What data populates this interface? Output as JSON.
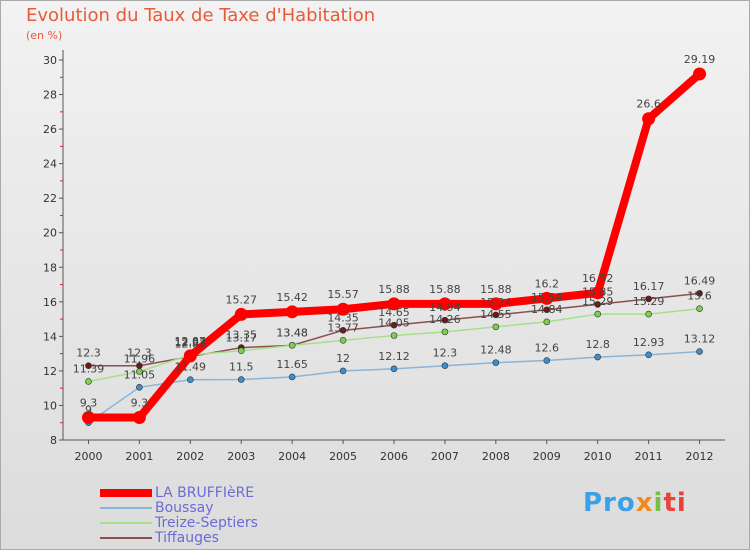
{
  "title": "Evolution du Taux de Taxe d'Habitation",
  "subtitle": "(en %)",
  "logo": {
    "p1": "Pro",
    "p2": "x",
    "p3": "i",
    "p4": "ti"
  },
  "chart_data": {
    "type": "line",
    "title": "Evolution du Taux de Taxe d'Habitation",
    "ylabel": "(en %)",
    "xlabel": "",
    "x": [
      "2000",
      "2001",
      "2002",
      "2003",
      "2004",
      "2005",
      "2006",
      "2007",
      "2008",
      "2009",
      "2010",
      "2011",
      "2012"
    ],
    "ylim": [
      8,
      30
    ],
    "yticks": [
      "8",
      "10",
      "12",
      "14",
      "16",
      "18",
      "20",
      "22",
      "24",
      "26",
      "28",
      "30"
    ],
    "grid": false,
    "legend_position": "bottom-left",
    "series": [
      {
        "name": "LA BRUFFIèRE",
        "color": "#ff0000",
        "marker": "#ff0000",
        "values": [
          9.3,
          9.3,
          12.87,
          15.27,
          15.42,
          15.57,
          15.88,
          15.88,
          15.88,
          16.2,
          16.52,
          26.6,
          29.19
        ],
        "labels": [
          "9.3",
          "9.3",
          "12.87",
          "15.27",
          "15.42",
          "15.57",
          "15.88",
          "15.88",
          "15.88",
          "16.2",
          "16.52",
          "26.6",
          "29.19"
        ]
      },
      {
        "name": "Boussay",
        "color": "#8ab4d8",
        "marker": "#3a8fd0",
        "values": [
          9,
          11.05,
          11.49,
          11.5,
          11.65,
          12,
          12.12,
          12.3,
          12.48,
          12.6,
          12.8,
          12.93,
          13.12
        ],
        "labels": [
          "9",
          "11.05",
          "11.49",
          "11.5",
          "11.65",
          "12",
          "12.12",
          "12.3",
          "12.48",
          "12.6",
          "12.8",
          "12.93",
          "13.12"
        ]
      },
      {
        "name": "Treize-Septiers",
        "color": "#a8e08a",
        "marker": "#7cd04a",
        "values": [
          11.39,
          11.96,
          12.93,
          13.17,
          13.48,
          13.77,
          14.05,
          14.26,
          14.55,
          14.84,
          15.29,
          15.29,
          15.6
        ],
        "labels": [
          "11.39",
          "11.96",
          "12.93",
          "13.17",
          "13.48",
          "13.77",
          "14.05",
          "14.26",
          "14.55",
          "14.84",
          "15.29",
          "15.29",
          "15.6"
        ]
      },
      {
        "name": "Tiffauges",
        "color": "#8b4f4f",
        "marker": "#6a1a1a",
        "values": [
          12.3,
          12.3,
          12.83,
          13.35,
          13.48,
          14.35,
          14.65,
          14.94,
          15.24,
          15.54,
          15.85,
          16.17,
          16.49
        ],
        "labels": [
          "12.3",
          "12.3",
          "12.83",
          "13.35",
          "13.48",
          "14.35",
          "14.65",
          "14.94",
          "15.24",
          "15.54",
          "15.85",
          "16.17",
          "16.49"
        ]
      }
    ]
  }
}
